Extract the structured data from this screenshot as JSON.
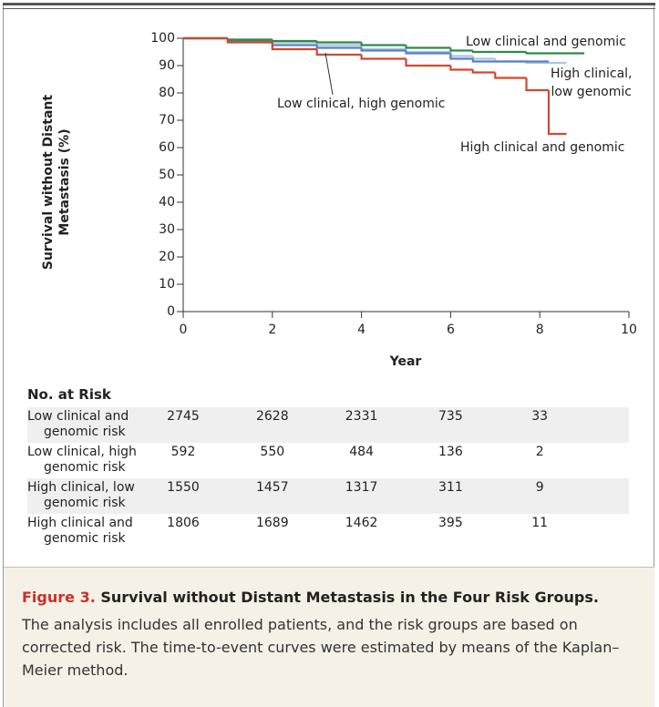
{
  "chart_data": {
    "type": "line",
    "step": true,
    "x_label": "Year",
    "y_label": "Survival without Distant Metastasis (%)",
    "x": [
      0,
      1,
      2,
      3,
      4,
      5,
      6,
      6.5,
      7,
      7.7,
      8.2,
      8.6,
      9
    ],
    "xlim": [
      0,
      10
    ],
    "ylim": [
      0,
      100
    ],
    "xticks": [
      0,
      2,
      4,
      6,
      8,
      10
    ],
    "yticks": [
      0,
      10,
      20,
      30,
      40,
      50,
      60,
      70,
      80,
      90,
      100
    ],
    "series": [
      {
        "name": "Low clinical and genomic",
        "color": "#2e8b4a",
        "values": [
          100,
          99.5,
          99,
          98.5,
          97.5,
          96.5,
          95.5,
          95,
          95,
          94.5,
          94.5,
          94.5,
          94.5
        ]
      },
      {
        "name": "High clinical, low genomic",
        "color": "#a9c5e2",
        "values": [
          100,
          99.5,
          98.5,
          97.5,
          96,
          95,
          93.5,
          92.5,
          91.5,
          91,
          91,
          91,
          null
        ]
      },
      {
        "name": "Low clinical, high genomic",
        "color": "#5a7fc2",
        "values": [
          100,
          99,
          97.5,
          96.5,
          95.5,
          94.5,
          92.5,
          91.5,
          91.5,
          91.5,
          91.5,
          null,
          null
        ]
      },
      {
        "name": "High clinical and genomic",
        "color": "#d2472e",
        "values": [
          100,
          98.5,
          96,
          94,
          92.5,
          90,
          88.5,
          87.5,
          85.5,
          81,
          65,
          65,
          null
        ]
      }
    ]
  },
  "risk_table": {
    "title": "No. at Risk",
    "rows": [
      {
        "label": "Low clinical and genomic risk",
        "values": [
          "2745",
          "2628",
          "2331",
          "735",
          "33"
        ]
      },
      {
        "label": "Low clinical, high genomic risk",
        "values": [
          "592",
          "550",
          "484",
          "136",
          "2"
        ]
      },
      {
        "label": "High clinical, low genomic risk",
        "values": [
          "1550",
          "1457",
          "1317",
          "311",
          "9"
        ]
      },
      {
        "label": "High clinical and genomic risk",
        "values": [
          "1806",
          "1689",
          "1462",
          "395",
          "11"
        ]
      }
    ]
  },
  "caption": {
    "label": "Figure 3.",
    "title": "Survival without Distant Metastasis in the Four Risk Groups.",
    "text": "The analysis includes all enrolled patients, and the risk groups are based on corrected risk. The time-to-event curves were estimated by means of the Kaplan–Meier method."
  }
}
